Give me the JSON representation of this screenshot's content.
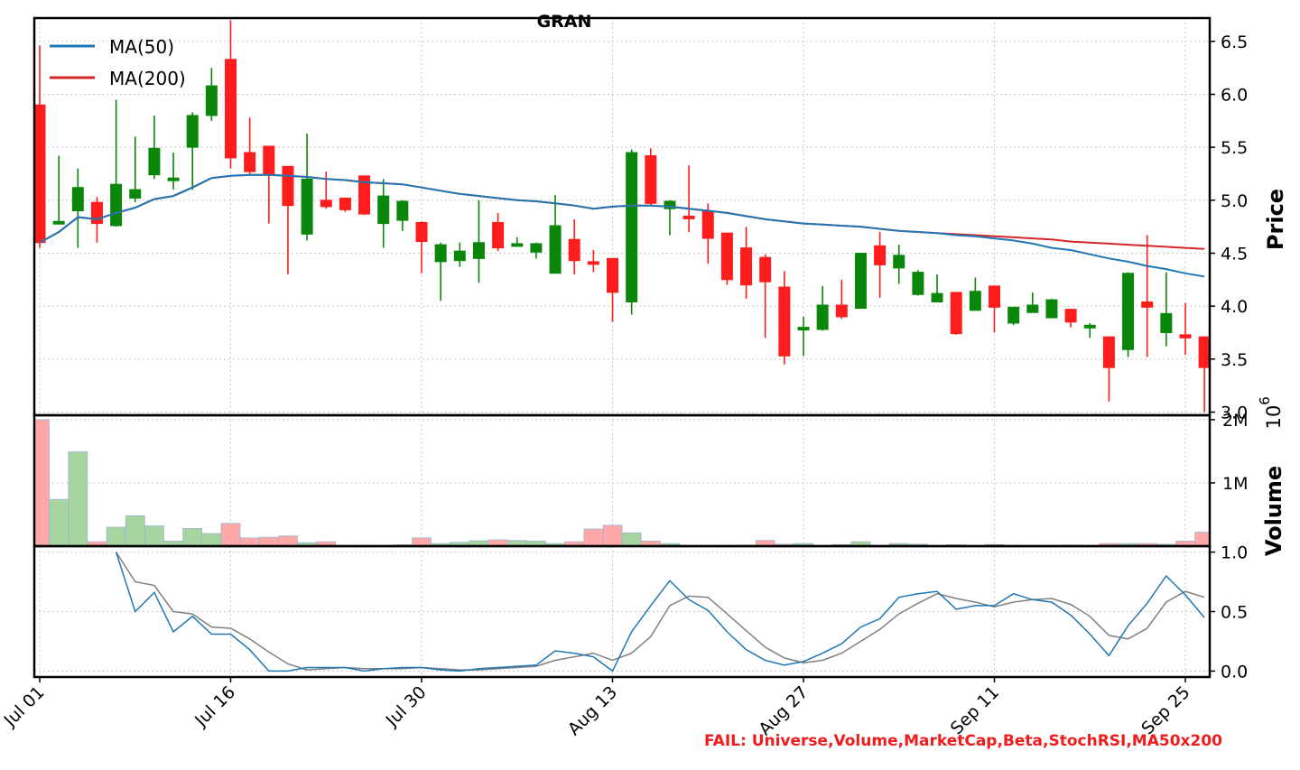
{
  "title": "GRAN",
  "legend": [
    {
      "label": "MA(50)",
      "color": "#1f77b4"
    },
    {
      "label": "MA(200)",
      "color": "#d62728"
    }
  ],
  "axes": {
    "price_label": "Price",
    "volume_label": "Volume",
    "volume_exponent": "10",
    "volume_exponent_power": "6",
    "price_ticks": [
      "3.0",
      "3.5",
      "4.0",
      "4.5",
      "5.0",
      "5.5",
      "6.0",
      "6.5"
    ],
    "volume_ticks": [
      "1M",
      "2M"
    ],
    "stoch_ticks": [
      "0.0",
      "0.5",
      "1.0"
    ],
    "x_ticks": [
      "Jul 01",
      "Jul 16",
      "Jul 30",
      "Aug 13",
      "Aug 27",
      "Sep 11",
      "Sep 25"
    ]
  },
  "footer": "FAIL: Universe,Volume,MarketCap,Beta,StochRSI,MA50x200",
  "colors": {
    "up": "#0a870a",
    "down": "#ff1c1c",
    "up_volume": "#a6d5a0",
    "down_volume": "#ffa8a8",
    "stoch_k": "#1f77b4",
    "stoch_d": "#808080"
  },
  "chart_data": {
    "type": "candlestick",
    "x_dates": [
      "Jul 01",
      "Jul 02",
      "Jul 03",
      "Jul 05",
      "Jul 08",
      "Jul 09",
      "Jul 10",
      "Jul 11",
      "Jul 12",
      "Jul 15",
      "Jul 16",
      "Jul 17",
      "Jul 18",
      "Jul 19",
      "Jul 22",
      "Jul 23",
      "Jul 24",
      "Jul 25",
      "Jul 26",
      "Jul 29",
      "Jul 30",
      "Jul 31",
      "Aug 01",
      "Aug 02",
      "Aug 05",
      "Aug 06",
      "Aug 07",
      "Aug 08",
      "Aug 09",
      "Aug 12",
      "Aug 13",
      "Aug 14",
      "Aug 15",
      "Aug 16",
      "Aug 19",
      "Aug 20",
      "Aug 21",
      "Aug 22",
      "Aug 23",
      "Aug 26",
      "Aug 27",
      "Aug 28",
      "Aug 29",
      "Aug 30",
      "Sep 03",
      "Sep 04",
      "Sep 05",
      "Sep 06",
      "Sep 09",
      "Sep 10",
      "Sep 11",
      "Sep 12",
      "Sep 13",
      "Sep 16",
      "Sep 17",
      "Sep 18",
      "Sep 19",
      "Sep 20",
      "Sep 23",
      "Sep 24",
      "Sep 25",
      "Sep 26"
    ],
    "ohlc": [
      [
        5.9,
        6.46,
        4.55,
        4.6
      ],
      [
        4.8,
        5.42,
        4.78,
        4.8
      ],
      [
        4.9,
        5.3,
        4.55,
        5.12
      ],
      [
        4.98,
        5.03,
        4.6,
        4.78
      ],
      [
        4.76,
        5.95,
        4.75,
        5.15
      ],
      [
        5.02,
        5.6,
        4.98,
        5.1
      ],
      [
        5.24,
        5.8,
        5.2,
        5.49
      ],
      [
        5.21,
        5.45,
        5.1,
        5.21
      ],
      [
        5.5,
        5.83,
        5.1,
        5.8
      ],
      [
        5.8,
        6.25,
        5.75,
        6.08
      ],
      [
        6.33,
        6.7,
        5.3,
        5.4
      ],
      [
        5.45,
        5.78,
        5.25,
        5.27
      ],
      [
        5.51,
        5.51,
        4.78,
        5.25
      ],
      [
        5.32,
        5.32,
        4.3,
        4.95
      ],
      [
        4.68,
        5.63,
        4.62,
        5.2
      ],
      [
        5.0,
        5.27,
        4.92,
        4.94
      ],
      [
        5.02,
        5.02,
        4.89,
        4.91
      ],
      [
        5.23,
        5.23,
        4.86,
        4.87
      ],
      [
        4.78,
        5.2,
        4.55,
        5.04
      ],
      [
        4.81,
        5.0,
        4.71,
        4.99
      ],
      [
        4.79,
        4.8,
        4.31,
        4.61
      ],
      [
        4.42,
        4.6,
        4.05,
        4.58
      ],
      [
        4.43,
        4.6,
        4.37,
        4.52
      ],
      [
        4.45,
        5.0,
        4.22,
        4.6
      ],
      [
        4.79,
        4.88,
        4.52,
        4.55
      ],
      [
        4.58,
        4.65,
        4.57,
        4.59
      ],
      [
        4.51,
        4.6,
        4.45,
        4.59
      ],
      [
        4.31,
        5.05,
        4.31,
        4.76
      ],
      [
        4.63,
        4.82,
        4.3,
        4.43
      ],
      [
        4.42,
        4.53,
        4.32,
        4.41
      ],
      [
        4.45,
        4.45,
        3.85,
        4.13
      ],
      [
        4.04,
        5.48,
        3.92,
        5.45
      ],
      [
        5.42,
        5.49,
        4.95,
        4.97
      ],
      [
        4.92,
        5.0,
        4.67,
        4.99
      ],
      [
        4.85,
        5.33,
        4.7,
        4.84
      ],
      [
        4.9,
        4.97,
        4.4,
        4.64
      ],
      [
        4.69,
        4.69,
        4.2,
        4.25
      ],
      [
        4.55,
        4.75,
        4.07,
        4.2
      ],
      [
        4.46,
        4.49,
        3.7,
        4.23
      ],
      [
        4.18,
        4.33,
        3.45,
        3.53
      ],
      [
        3.8,
        3.9,
        3.53,
        3.8
      ],
      [
        3.78,
        4.19,
        3.77,
        4.01
      ],
      [
        4.01,
        4.25,
        3.88,
        3.9
      ],
      [
        3.98,
        4.5,
        3.98,
        4.5
      ],
      [
        4.57,
        4.7,
        4.08,
        4.39
      ],
      [
        4.36,
        4.58,
        4.21,
        4.48
      ],
      [
        4.11,
        4.34,
        4.1,
        4.32
      ],
      [
        4.04,
        4.3,
        4.04,
        4.12
      ],
      [
        4.13,
        4.13,
        3.73,
        3.74
      ],
      [
        3.96,
        4.27,
        3.96,
        4.14
      ],
      [
        4.19,
        4.19,
        3.75,
        3.99
      ],
      [
        3.84,
        3.99,
        3.82,
        3.99
      ],
      [
        3.94,
        4.13,
        3.94,
        4.01
      ],
      [
        3.89,
        4.07,
        3.89,
        4.06
      ],
      [
        3.97,
        3.97,
        3.8,
        3.85
      ],
      [
        3.82,
        3.84,
        3.7,
        3.82
      ],
      [
        3.71,
        3.71,
        3.1,
        3.42
      ],
      [
        3.59,
        4.32,
        3.52,
        4.31
      ],
      [
        4.04,
        4.67,
        3.52,
        3.99
      ],
      [
        3.75,
        4.32,
        3.62,
        3.93
      ],
      [
        3.73,
        4.03,
        3.54,
        3.7
      ],
      [
        3.71,
        3.71,
        3.0,
        3.42
      ]
    ],
    "ma50": [
      4.6,
      4.7,
      4.84,
      4.82,
      4.88,
      4.93,
      5.01,
      5.04,
      5.12,
      5.21,
      5.23,
      5.24,
      5.24,
      5.23,
      5.22,
      5.2,
      5.19,
      5.17,
      5.16,
      5.15,
      5.12,
      5.09,
      5.06,
      5.04,
      5.02,
      5.0,
      4.99,
      4.97,
      4.95,
      4.92,
      4.94,
      4.95,
      4.95,
      4.94,
      4.92,
      4.9,
      4.88,
      4.85,
      4.82,
      4.8,
      4.78,
      4.77,
      4.76,
      4.75,
      4.73,
      4.71,
      4.7,
      4.69,
      4.67,
      4.66,
      4.64,
      4.62,
      4.59,
      4.55,
      4.53,
      4.49,
      4.45,
      4.42,
      4.38,
      4.35,
      4.31,
      4.28
    ],
    "ma200": [
      4.6,
      4.7,
      4.84,
      4.82,
      4.88,
      4.93,
      5.01,
      5.04,
      5.12,
      5.21,
      5.23,
      5.24,
      5.24,
      5.23,
      5.22,
      5.2,
      5.19,
      5.17,
      5.16,
      5.15,
      5.12,
      5.09,
      5.06,
      5.04,
      5.02,
      5.0,
      4.99,
      4.97,
      4.95,
      4.92,
      4.94,
      4.95,
      4.95,
      4.94,
      4.92,
      4.9,
      4.88,
      4.85,
      4.82,
      4.8,
      4.78,
      4.77,
      4.76,
      4.75,
      4.73,
      4.71,
      4.7,
      4.69,
      4.68,
      4.67,
      4.66,
      4.65,
      4.64,
      4.63,
      4.61,
      4.6,
      4.59,
      4.58,
      4.57,
      4.56,
      4.55,
      4.54
    ],
    "volume": [
      2000000,
      740000,
      1490000,
      70000,
      300000,
      480000,
      320000,
      80000,
      280000,
      200000,
      360000,
      130000,
      140000,
      160000,
      55000,
      70000,
      5000,
      10000,
      5000,
      20000,
      130000,
      40000,
      60000,
      85000,
      100000,
      90000,
      80000,
      40000,
      70000,
      270000,
      330000,
      210000,
      80000,
      40000,
      5000,
      5000,
      10000,
      15000,
      90000,
      30000,
      40000,
      5000,
      25000,
      70000,
      10000,
      40000,
      30000,
      5000,
      20000,
      5000,
      25000,
      10000,
      5000,
      10000,
      15000,
      10000,
      40000,
      40000,
      40000,
      30000,
      80000,
      220000
    ],
    "stoch_k": [
      null,
      null,
      null,
      null,
      1.0,
      0.5,
      0.66,
      0.33,
      0.46,
      0.31,
      0.31,
      0.18,
      0.0,
      0.0,
      0.03,
      0.03,
      0.03,
      0.0,
      0.02,
      0.03,
      0.03,
      0.01,
      0.0,
      0.02,
      0.03,
      0.04,
      0.05,
      0.17,
      0.15,
      0.12,
      0.0,
      0.33,
      0.55,
      0.76,
      0.6,
      0.51,
      0.33,
      0.18,
      0.09,
      0.05,
      0.08,
      0.15,
      0.23,
      0.37,
      0.44,
      0.62,
      0.65,
      0.67,
      0.52,
      0.55,
      0.55,
      0.65,
      0.6,
      0.58,
      0.47,
      0.31,
      0.13,
      0.38,
      0.57,
      0.8,
      0.64,
      0.45
    ],
    "stoch_d": [
      null,
      null,
      null,
      null,
      1.0,
      0.75,
      0.72,
      0.5,
      0.48,
      0.37,
      0.36,
      0.27,
      0.16,
      0.06,
      0.01,
      0.02,
      0.03,
      0.02,
      0.02,
      0.02,
      0.03,
      0.02,
      0.01,
      0.01,
      0.02,
      0.03,
      0.04,
      0.09,
      0.12,
      0.15,
      0.09,
      0.15,
      0.29,
      0.55,
      0.63,
      0.62,
      0.48,
      0.34,
      0.2,
      0.11,
      0.07,
      0.09,
      0.15,
      0.25,
      0.35,
      0.48,
      0.57,
      0.65,
      0.61,
      0.58,
      0.54,
      0.58,
      0.6,
      0.61,
      0.56,
      0.46,
      0.3,
      0.27,
      0.36,
      0.58,
      0.67,
      0.62
    ],
    "price_ylim": [
      2.97,
      6.72
    ],
    "volume_ylim": [
      0,
      2070000
    ],
    "stoch_ylim": [
      -0.05,
      1.05
    ],
    "x_tick_indices": [
      0,
      10,
      20,
      30,
      40,
      50,
      60
    ]
  }
}
